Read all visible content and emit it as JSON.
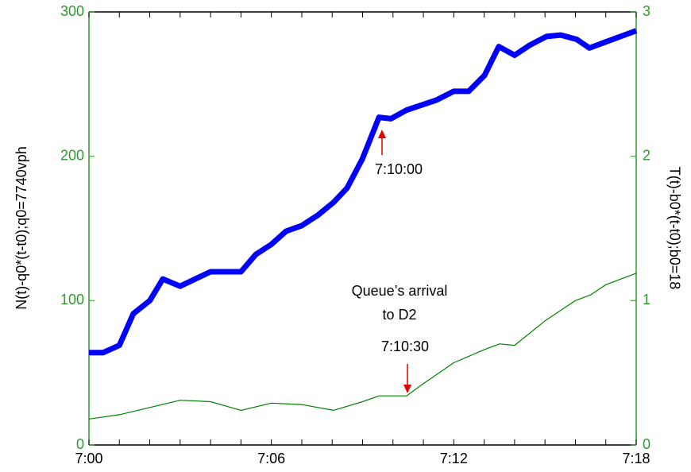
{
  "chart_data": {
    "type": "line",
    "ylabel": "N(t)-q0*(t-t0);q0=7740vph",
    "y2label": "T(t)-b0*(t-t0);b0=18",
    "xlim": [
      0,
      18
    ],
    "xticks": [
      {
        "value": 0,
        "label": "7:00"
      },
      {
        "value": 6,
        "label": "7:06"
      },
      {
        "value": 12,
        "label": "7:12"
      },
      {
        "value": 18,
        "label": "7:18"
      }
    ],
    "xminorticks": [
      1,
      2,
      3,
      4,
      5,
      7,
      8,
      9,
      10,
      11,
      13,
      14,
      15,
      16,
      17
    ],
    "ylim": [
      0,
      300
    ],
    "yticks": [
      0,
      100,
      200,
      300
    ],
    "y2lim": [
      0,
      3
    ],
    "y2ticks": [
      0,
      1,
      2,
      3
    ],
    "axis_color": "#2e9a2e",
    "series": [
      {
        "color": "#0000ff",
        "x": [
          0,
          0.47,
          1,
          1.46,
          2,
          2.43,
          3,
          4,
          5,
          5.49,
          6,
          6.48,
          7,
          7.52,
          8.04,
          8.49,
          8.99,
          9.54,
          9.93,
          10.45,
          11.44,
          12,
          12.49,
          13.01,
          13.48,
          14,
          14.5,
          15.05,
          15.52,
          16.04,
          16.46,
          18
        ],
        "values": [
          64,
          64,
          69,
          91,
          100,
          115,
          110,
          120,
          120,
          132,
          139,
          148,
          152,
          159,
          168,
          178,
          198,
          227,
          226,
          232,
          239,
          245,
          245,
          256,
          276,
          270,
          277,
          283,
          284,
          281,
          275,
          287
        ]
      },
      {
        "color": "#008000",
        "axis": "y2",
        "x": [
          0,
          1,
          2,
          3,
          4,
          5,
          6,
          7,
          8.04,
          9,
          9.54,
          10.45,
          10.9,
          12,
          13,
          13.5,
          14,
          15,
          16,
          16.5,
          17,
          18
        ],
        "values": [
          0.18,
          0.21,
          0.26,
          0.31,
          0.3,
          0.24,
          0.29,
          0.28,
          0.24,
          0.3,
          0.34,
          0.34,
          0.41,
          0.57,
          0.66,
          0.7,
          0.69,
          0.86,
          1.0,
          1.04,
          1.11,
          1.19
        ]
      }
    ],
    "annotations": [
      "7:10:00",
      "Queue’s arrival",
      "to D2",
      "7:10:30"
    ]
  }
}
